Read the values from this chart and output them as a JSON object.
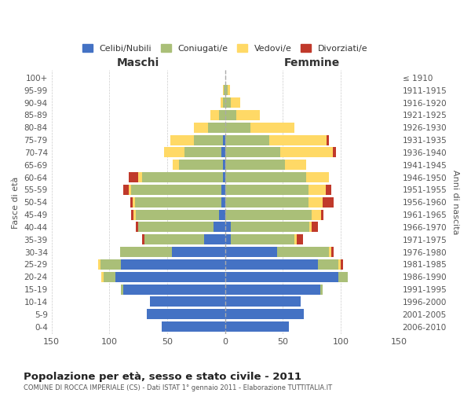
{
  "age_groups": [
    "0-4",
    "5-9",
    "10-14",
    "15-19",
    "20-24",
    "25-29",
    "30-34",
    "35-39",
    "40-44",
    "45-49",
    "50-54",
    "55-59",
    "60-64",
    "65-69",
    "70-74",
    "75-79",
    "80-84",
    "85-89",
    "90-94",
    "95-99",
    "100+"
  ],
  "birth_years": [
    "2006-2010",
    "2001-2005",
    "1996-2000",
    "1991-1995",
    "1986-1990",
    "1981-1985",
    "1976-1980",
    "1971-1975",
    "1966-1970",
    "1961-1965",
    "1956-1960",
    "1951-1955",
    "1946-1950",
    "1941-1945",
    "1936-1940",
    "1931-1935",
    "1926-1930",
    "1921-1925",
    "1916-1920",
    "1911-1915",
    "≤ 1910"
  ],
  "male_celibi": [
    55,
    68,
    65,
    88,
    95,
    90,
    46,
    18,
    10,
    5,
    3,
    3,
    2,
    2,
    3,
    2,
    0,
    0,
    0,
    0,
    0
  ],
  "male_coniugati": [
    0,
    0,
    0,
    2,
    10,
    18,
    45,
    52,
    65,
    72,
    75,
    78,
    70,
    38,
    32,
    25,
    15,
    5,
    2,
    1,
    0
  ],
  "male_vedovi": [
    0,
    0,
    0,
    0,
    2,
    2,
    0,
    0,
    0,
    2,
    2,
    2,
    3,
    5,
    18,
    20,
    12,
    8,
    2,
    1,
    0
  ],
  "male_divorziati": [
    0,
    0,
    0,
    0,
    0,
    0,
    0,
    2,
    2,
    2,
    2,
    5,
    8,
    0,
    0,
    0,
    0,
    0,
    0,
    0,
    0
  ],
  "female_nubili": [
    55,
    68,
    65,
    82,
    98,
    80,
    45,
    5,
    5,
    0,
    0,
    0,
    0,
    0,
    0,
    0,
    0,
    0,
    0,
    0,
    0
  ],
  "female_coniugate": [
    0,
    0,
    0,
    2,
    8,
    18,
    45,
    55,
    68,
    75,
    72,
    72,
    70,
    52,
    48,
    38,
    22,
    10,
    5,
    2,
    0
  ],
  "female_vedove": [
    0,
    0,
    0,
    0,
    0,
    2,
    2,
    2,
    2,
    8,
    12,
    15,
    20,
    18,
    45,
    50,
    38,
    20,
    8,
    2,
    0
  ],
  "female_divorziate": [
    0,
    0,
    0,
    0,
    0,
    2,
    2,
    5,
    5,
    2,
    10,
    5,
    0,
    0,
    3,
    2,
    0,
    0,
    0,
    0,
    0
  ],
  "colors": {
    "celibi_nubili": "#4472C4",
    "coniugati": "#AABF78",
    "vedovi": "#FFD966",
    "divorziati": "#C0392B"
  },
  "title": "Popolazione per età, sesso e stato civile - 2011",
  "subtitle": "COMUNE DI ROCCA IMPERIALE (CS) - Dati ISTAT 1° gennaio 2011 - Elaborazione TUTTITALIA.IT",
  "xlabel_left": "Maschi",
  "xlabel_right": "Femmine",
  "ylabel_left": "Fasce di età",
  "ylabel_right": "Anni di nascita",
  "xlim": 150,
  "legend": [
    "Celibi/Nubili",
    "Coniugati/e",
    "Vedovi/e",
    "Divorziati/e"
  ],
  "background_color": "#ffffff",
  "grid_color": "#cccccc"
}
